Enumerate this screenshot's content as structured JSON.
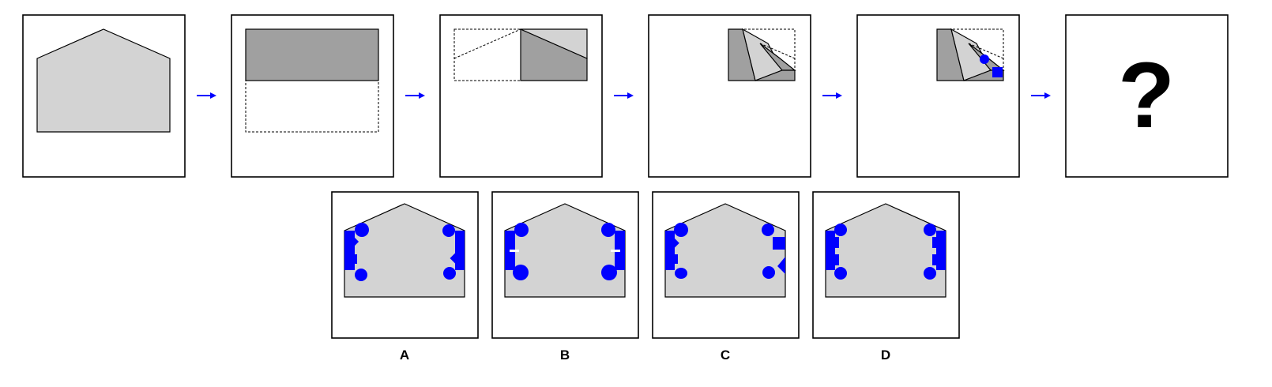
{
  "puzzle": {
    "steps": [
      "house-shape",
      "fold-top-down",
      "fold-left-diagonal",
      "fold-multi-diagonal",
      "punch-holes"
    ],
    "question_mark": "?",
    "options": [
      {
        "label": "A"
      },
      {
        "label": "B"
      },
      {
        "label": "C"
      },
      {
        "label": "D"
      }
    ]
  },
  "colors": {
    "paper": "#d3d3d3",
    "paper_folded": "#a0a0a0",
    "hole": "#0000ff",
    "arrow": "#0000ff",
    "border": "#000000"
  }
}
